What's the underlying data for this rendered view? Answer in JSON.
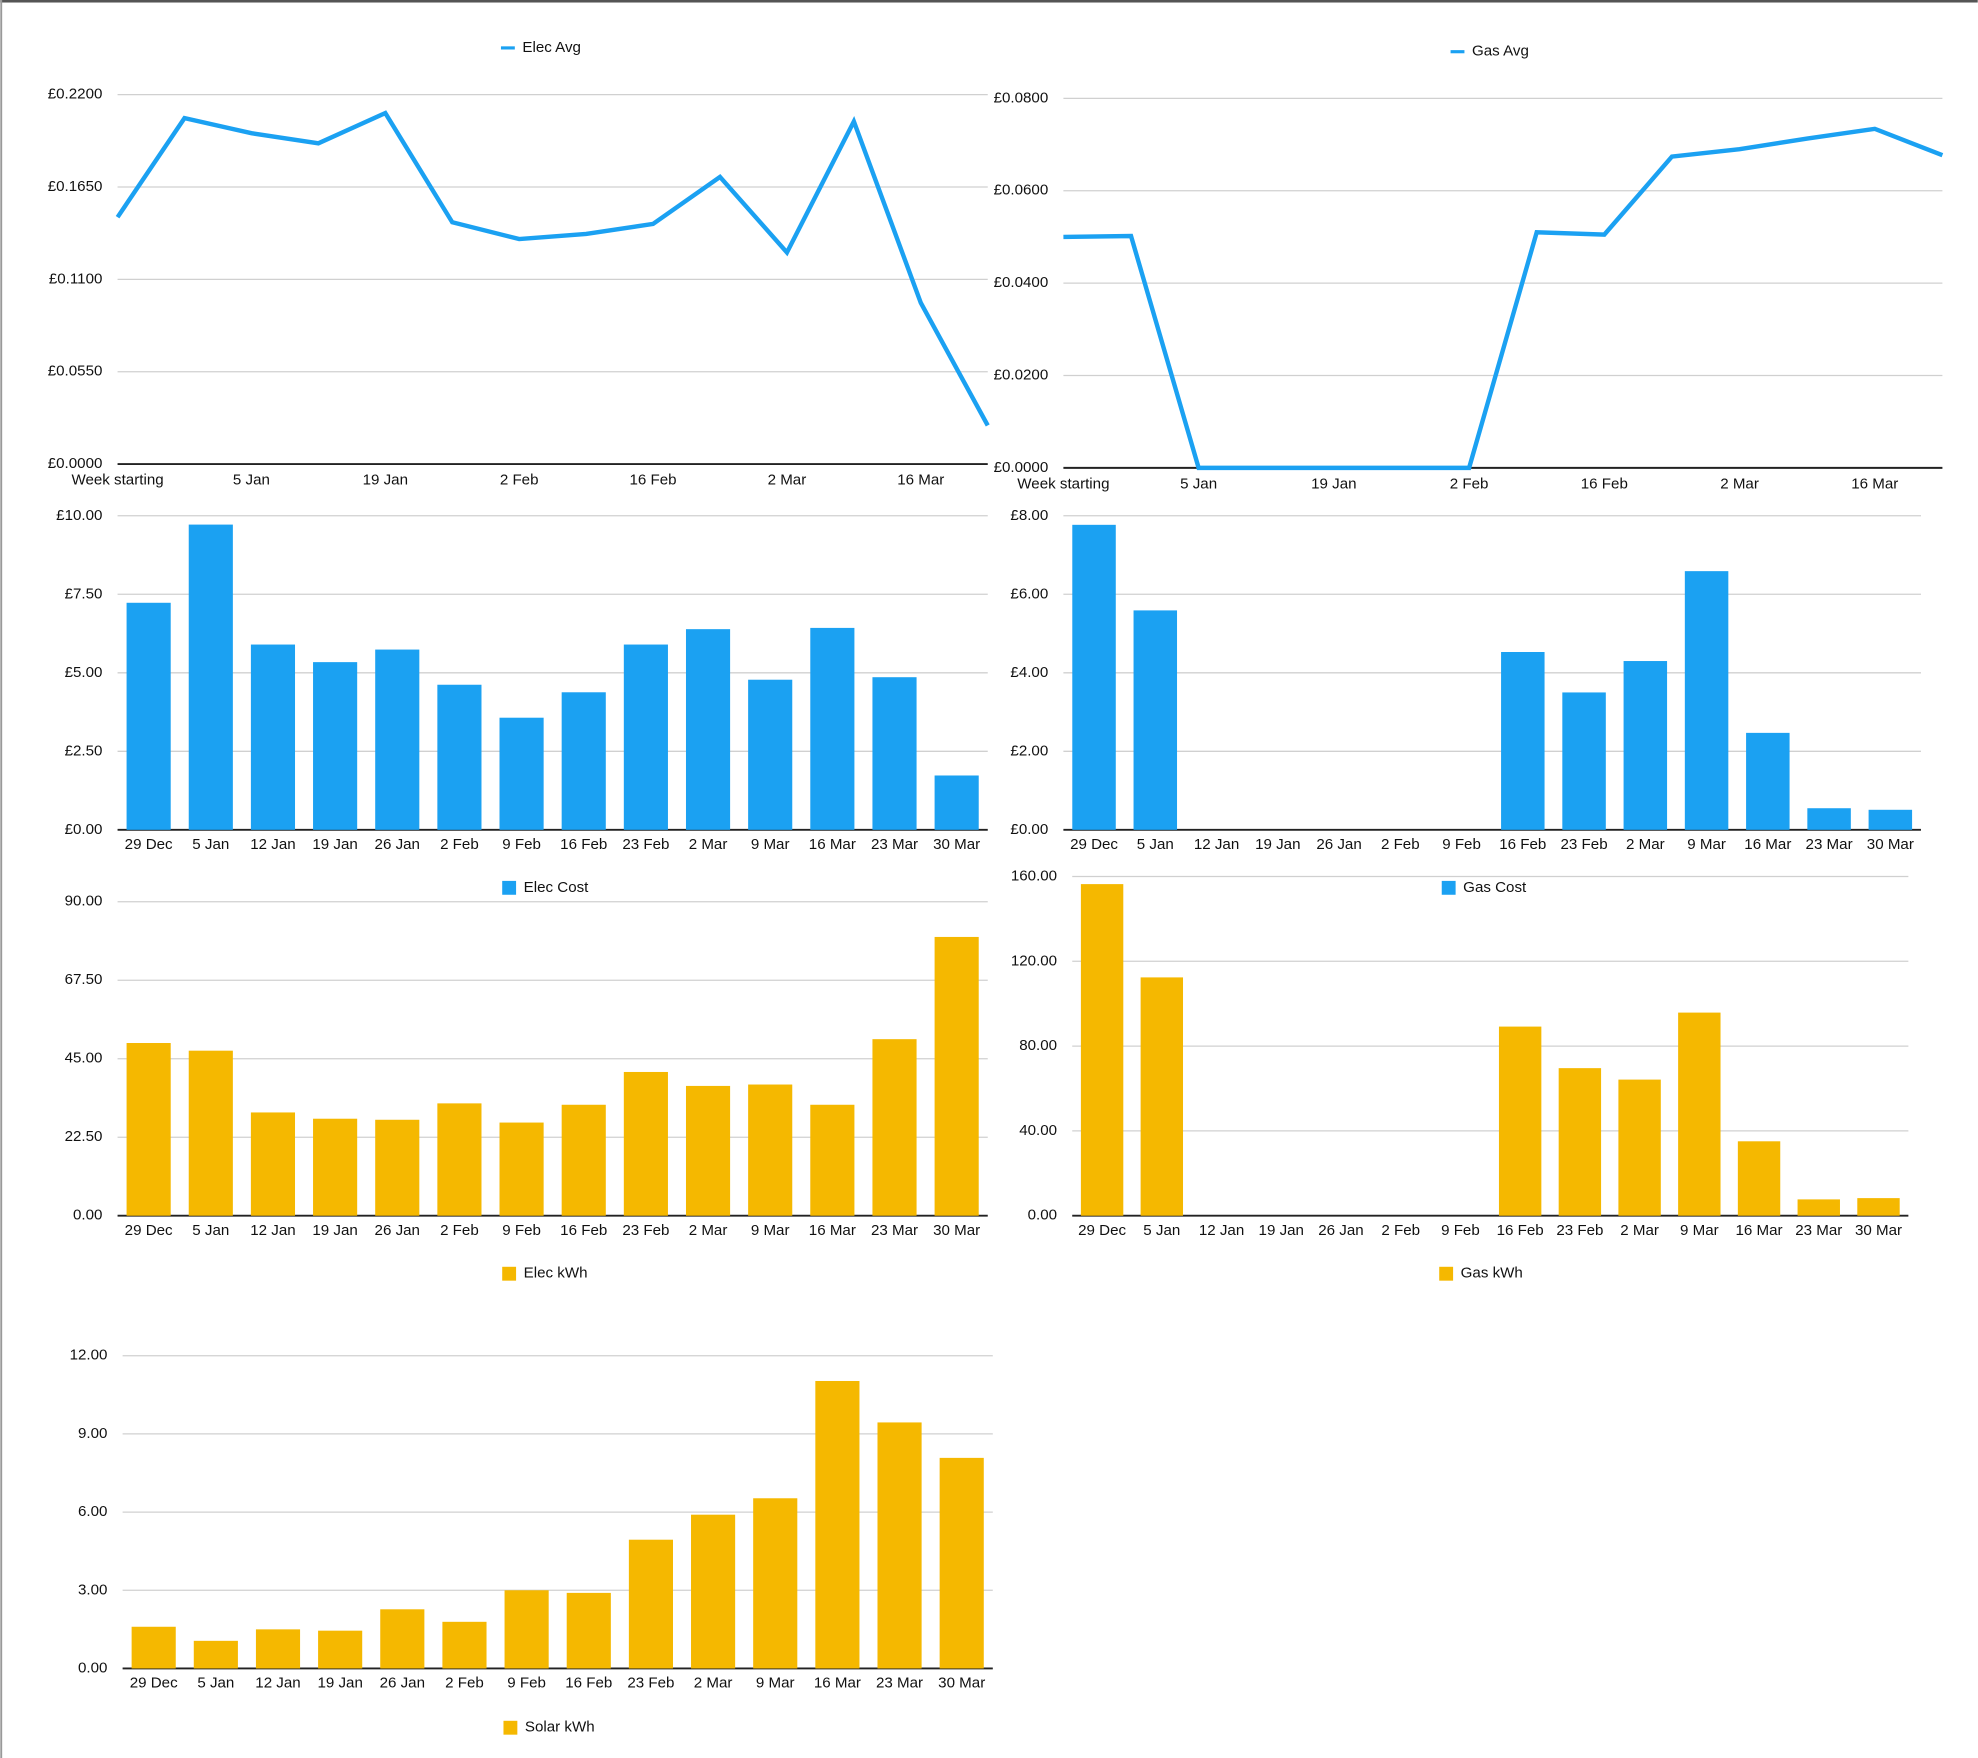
{
  "chart_data": [
    {
      "type": "line",
      "legend": "top",
      "categories": [
        "Week starting",
        null,
        "5 Jan",
        null,
        "19 Jan",
        null,
        "2 Feb",
        null,
        "16 Feb",
        null,
        "2 Mar",
        null,
        "16 Mar",
        null
      ],
      "series": [
        {
          "name": "Elec Avg",
          "color": "#1ba1f2",
          "values": [
            0.147,
            0.206,
            0.197,
            0.191,
            0.209,
            0.144,
            0.134,
            0.137,
            0.143,
            0.171,
            0.126,
            0.204,
            0.096,
            0.023
          ]
        }
      ],
      "ylim": [
        0,
        0.22
      ],
      "yticks": [
        {
          "value": 0,
          "label": "£0.0000"
        },
        {
          "value": 0.055,
          "label": "£0.0550"
        },
        {
          "value": 0.11,
          "label": "£0.1100"
        },
        {
          "value": 0.165,
          "label": "£0.1650"
        },
        {
          "value": 0.22,
          "label": "£0.2200"
        }
      ],
      "grid": true
    },
    {
      "type": "line",
      "legend": "top",
      "categories": [
        "Week starting",
        null,
        "5 Jan",
        null,
        "19 Jan",
        null,
        "2 Feb",
        null,
        "16 Feb",
        null,
        "2 Mar",
        null,
        "16 Mar",
        null
      ],
      "series": [
        {
          "name": "Gas Avg",
          "color": "#1ba1f2",
          "values": [
            0.05,
            0.0502,
            0,
            0,
            0,
            0,
            0,
            0.051,
            0.0505,
            0.0674,
            0.069,
            0.0713,
            0.0734,
            0.0677
          ]
        }
      ],
      "ylim": [
        0,
        0.08
      ],
      "yticks": [
        {
          "value": 0,
          "label": "£0.0000"
        },
        {
          "value": 0.02,
          "label": "£0.0200"
        },
        {
          "value": 0.04,
          "label": "£0.0400"
        },
        {
          "value": 0.06,
          "label": "£0.0600"
        },
        {
          "value": 0.08,
          "label": "£0.0800"
        }
      ],
      "grid": true
    },
    {
      "type": "bar",
      "legend": "bottom",
      "categories": [
        "29 Dec",
        "5 Jan",
        "12 Jan",
        "19 Jan",
        "26 Jan",
        "2 Feb",
        "9 Feb",
        "16 Feb",
        "23 Feb",
        "2 Mar",
        "9 Mar",
        "16 Mar",
        "23 Mar",
        "30 Mar"
      ],
      "series": [
        {
          "name": "Elec Cost",
          "color": "#1ba1f2",
          "values": [
            7.23,
            9.72,
            5.9,
            5.34,
            5.74,
            4.62,
            3.57,
            4.38,
            5.9,
            6.39,
            4.78,
            6.43,
            4.86,
            1.73
          ]
        }
      ],
      "ylim": [
        0,
        10
      ],
      "yticks": [
        {
          "value": 0,
          "label": "£0.00"
        },
        {
          "value": 2.5,
          "label": "£2.50"
        },
        {
          "value": 5,
          "label": "£5.00"
        },
        {
          "value": 7.5,
          "label": "£7.50"
        },
        {
          "value": 10,
          "label": "£10.00"
        }
      ],
      "grid": true
    },
    {
      "type": "bar",
      "legend": "bottom",
      "categories": [
        "29 Dec",
        "5 Jan",
        "12 Jan",
        "19 Jan",
        "26 Jan",
        "2 Feb",
        "9 Feb",
        "16 Feb",
        "23 Feb",
        "2 Mar",
        "9 Mar",
        "16 Mar",
        "23 Mar",
        "30 Mar"
      ],
      "series": [
        {
          "name": "Gas Cost",
          "color": "#1ba1f2",
          "values": [
            7.77,
            5.59,
            0,
            0,
            0,
            0,
            0,
            4.53,
            3.5,
            4.3,
            6.59,
            2.47,
            0.55,
            0.51
          ]
        }
      ],
      "ylim": [
        0,
        8
      ],
      "yticks": [
        {
          "value": 0,
          "label": "£0.00"
        },
        {
          "value": 2,
          "label": "£2.00"
        },
        {
          "value": 4,
          "label": "£4.00"
        },
        {
          "value": 6,
          "label": "£6.00"
        },
        {
          "value": 8,
          "label": "£8.00"
        }
      ],
      "grid": true
    },
    {
      "type": "bar",
      "legend": "bottom",
      "categories": [
        "29 Dec",
        "5 Jan",
        "12 Jan",
        "19 Jan",
        "26 Jan",
        "2 Feb",
        "9 Feb",
        "16 Feb",
        "23 Feb",
        "2 Mar",
        "9 Mar",
        "16 Mar",
        "23 Mar",
        "30 Mar"
      ],
      "series": [
        {
          "name": "Elec kWh",
          "color": "#f5b800",
          "values": [
            49.5,
            47.3,
            29.6,
            27.8,
            27.5,
            32.2,
            26.7,
            31.8,
            41.2,
            37.2,
            37.6,
            31.8,
            50.6,
            79.9
          ]
        }
      ],
      "ylim": [
        0,
        90
      ],
      "yticks": [
        {
          "value": 0,
          "label": "0.00"
        },
        {
          "value": 22.5,
          "label": "22.50"
        },
        {
          "value": 45,
          "label": "45.00"
        },
        {
          "value": 67.5,
          "label": "67.50"
        },
        {
          "value": 90,
          "label": "90.00"
        }
      ],
      "grid": true
    },
    {
      "type": "bar",
      "legend": "bottom",
      "categories": [
        "29 Dec",
        "5 Jan",
        "12 Jan",
        "19 Jan",
        "26 Jan",
        "2 Feb",
        "9 Feb",
        "16 Feb",
        "23 Feb",
        "2 Mar",
        "9 Mar",
        "16 Mar",
        "23 Mar",
        "30 Mar"
      ],
      "series": [
        {
          "name": "Gas kWh",
          "color": "#f5b800",
          "values": [
            156.4,
            112.4,
            0,
            0,
            0,
            0,
            0,
            89.2,
            69.6,
            64.2,
            95.8,
            35.1,
            7.7,
            8.3
          ]
        }
      ],
      "ylim": [
        0,
        160
      ],
      "yticks": [
        {
          "value": 0,
          "label": "0.00"
        },
        {
          "value": 40,
          "label": "40.00"
        },
        {
          "value": 80,
          "label": "80.00"
        },
        {
          "value": 120,
          "label": "120.00"
        },
        {
          "value": 160,
          "label": "160.00"
        }
      ],
      "grid": true
    },
    {
      "type": "bar",
      "legend": "bottom",
      "categories": [
        "29 Dec",
        "5 Jan",
        "12 Jan",
        "19 Jan",
        "26 Jan",
        "2 Feb",
        "9 Feb",
        "16 Feb",
        "23 Feb",
        "2 Mar",
        "9 Mar",
        "16 Mar",
        "23 Mar",
        "30 Mar"
      ],
      "series": [
        {
          "name": "Solar kWh",
          "color": "#f5b800",
          "values": [
            1.6,
            1.06,
            1.5,
            1.45,
            2.27,
            1.79,
            3.0,
            2.9,
            4.94,
            5.9,
            6.53,
            11.03,
            9.44,
            8.08
          ]
        }
      ],
      "ylim": [
        0,
        12
      ],
      "yticks": [
        {
          "value": 0,
          "label": "0.00"
        },
        {
          "value": 3,
          "label": "3.00"
        },
        {
          "value": 6,
          "label": "6.00"
        },
        {
          "value": 9,
          "label": "9.00"
        },
        {
          "value": 12,
          "label": "12.00"
        }
      ],
      "grid": true
    }
  ]
}
